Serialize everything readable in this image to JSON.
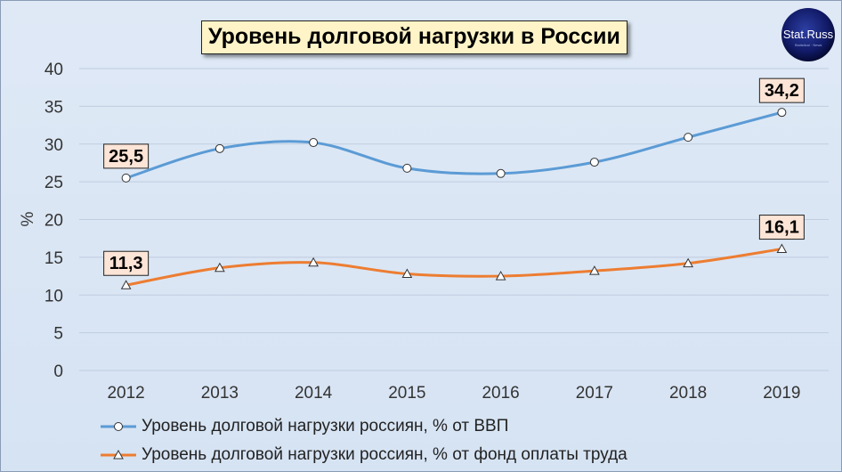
{
  "title": "Уровень долговой нагрузки в России",
  "logo": {
    "text": "Stat.Russ",
    "subtext": "Statistical · News"
  },
  "colors": {
    "series1": "#5b9bd5",
    "series2": "#ed7d31",
    "grid": "#bfcde0",
    "label_bg": "#fce4d6"
  },
  "chart_data": {
    "type": "line",
    "title": "Уровень долговой нагрузки в России",
    "ylabel": "%",
    "xlabel": "",
    "x": [
      "2012",
      "2013",
      "2014",
      "2015",
      "2016",
      "2017",
      "2018",
      "2019"
    ],
    "ylim": [
      0,
      40
    ],
    "yticks": [
      0,
      5,
      10,
      15,
      20,
      25,
      30,
      35,
      40
    ],
    "grid": true,
    "legend_position": "bottom",
    "series": [
      {
        "name": "Уровень долговой нагрузки россиян, % от ВВП",
        "values": [
          25.5,
          29.4,
          30.2,
          26.8,
          26.1,
          27.6,
          30.9,
          34.2
        ],
        "marker": "circle",
        "data_labels": [
          {
            "index": 0,
            "text": "25,5"
          },
          {
            "index": 7,
            "text": "34,2"
          }
        ]
      },
      {
        "name": "Уровень долговой нагрузки россиян, % от фонд оплаты труда",
        "values": [
          11.3,
          13.6,
          14.3,
          12.8,
          12.5,
          13.2,
          14.2,
          16.1
        ],
        "marker": "triangle",
        "data_labels": [
          {
            "index": 0,
            "text": "11,3"
          },
          {
            "index": 7,
            "text": "16,1"
          }
        ]
      }
    ]
  }
}
